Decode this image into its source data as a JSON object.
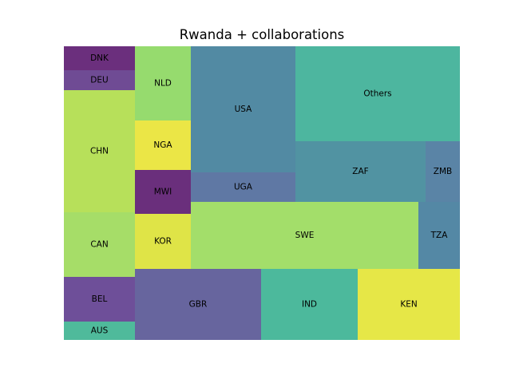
{
  "chart_data": {
    "type": "treemap",
    "title": "Rwanda + collaborations",
    "cells": [
      {
        "label": "DNK",
        "color": "#6b2f7d",
        "group": "col1"
      },
      {
        "label": "DEU",
        "color": "#6f4b94",
        "group": "col1"
      },
      {
        "label": "CHN",
        "color": "#b7e05a",
        "group": "col1"
      },
      {
        "label": "CAN",
        "color": "#a6dd68",
        "group": "col1"
      },
      {
        "label": "BEL",
        "color": "#6e4f99",
        "group": "col1"
      },
      {
        "label": "AUS",
        "color": "#4fba9b",
        "group": "col1"
      },
      {
        "label": "NLD",
        "color": "#96db6e",
        "group": "col2"
      },
      {
        "label": "NGA",
        "color": "#ebe646",
        "group": "col2"
      },
      {
        "label": "MWI",
        "color": "#6a2f7c",
        "group": "col2"
      },
      {
        "label": "KOR",
        "color": "#dfe447",
        "group": "col2"
      },
      {
        "label": "USA",
        "color": "#528aa3",
        "group": "col3"
      },
      {
        "label": "UGA",
        "color": "#5f78a4",
        "group": "col3"
      },
      {
        "label": "Others",
        "color": "#4db69f",
        "group": "col4"
      },
      {
        "label": "ZAF",
        "color": "#5193a2",
        "group": "col4"
      },
      {
        "label": "ZMB",
        "color": "#5a84a6",
        "group": "col4"
      },
      {
        "label": "SWE",
        "color": "#a3de6a",
        "group": "row-mid"
      },
      {
        "label": "TZA",
        "color": "#5488a5",
        "group": "row-mid"
      },
      {
        "label": "GBR",
        "color": "#67659e",
        "group": "bottom"
      },
      {
        "label": "IND",
        "color": "#4cb99c",
        "group": "bottom"
      },
      {
        "label": "KEN",
        "color": "#e6e747",
        "group": "bottom"
      }
    ]
  }
}
